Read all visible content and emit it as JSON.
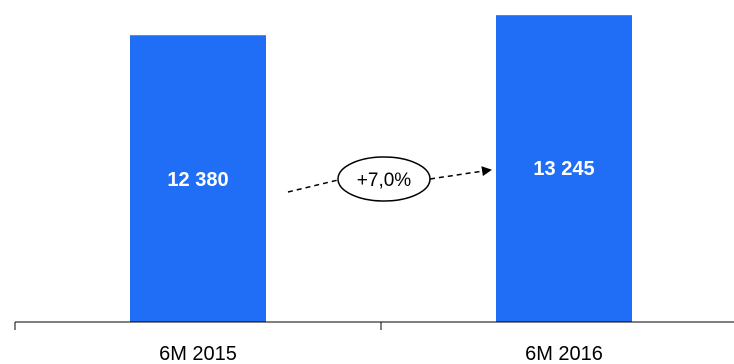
{
  "chart_data": {
    "type": "bar",
    "categories": [
      "6M 2015",
      "6M 2016"
    ],
    "values": [
      12380,
      13245
    ],
    "data_labels": [
      "12 380",
      "13 245"
    ],
    "ylim": [
      0,
      13900
    ],
    "bar_color": "#1f6ef5",
    "annotation": {
      "text": "+7,0%",
      "type": "growth-arrow",
      "from_category": "6M 2015",
      "to_category": "6M 2016"
    },
    "title": "",
    "xlabel": "",
    "ylabel": "",
    "grid": false,
    "legend": "none"
  }
}
